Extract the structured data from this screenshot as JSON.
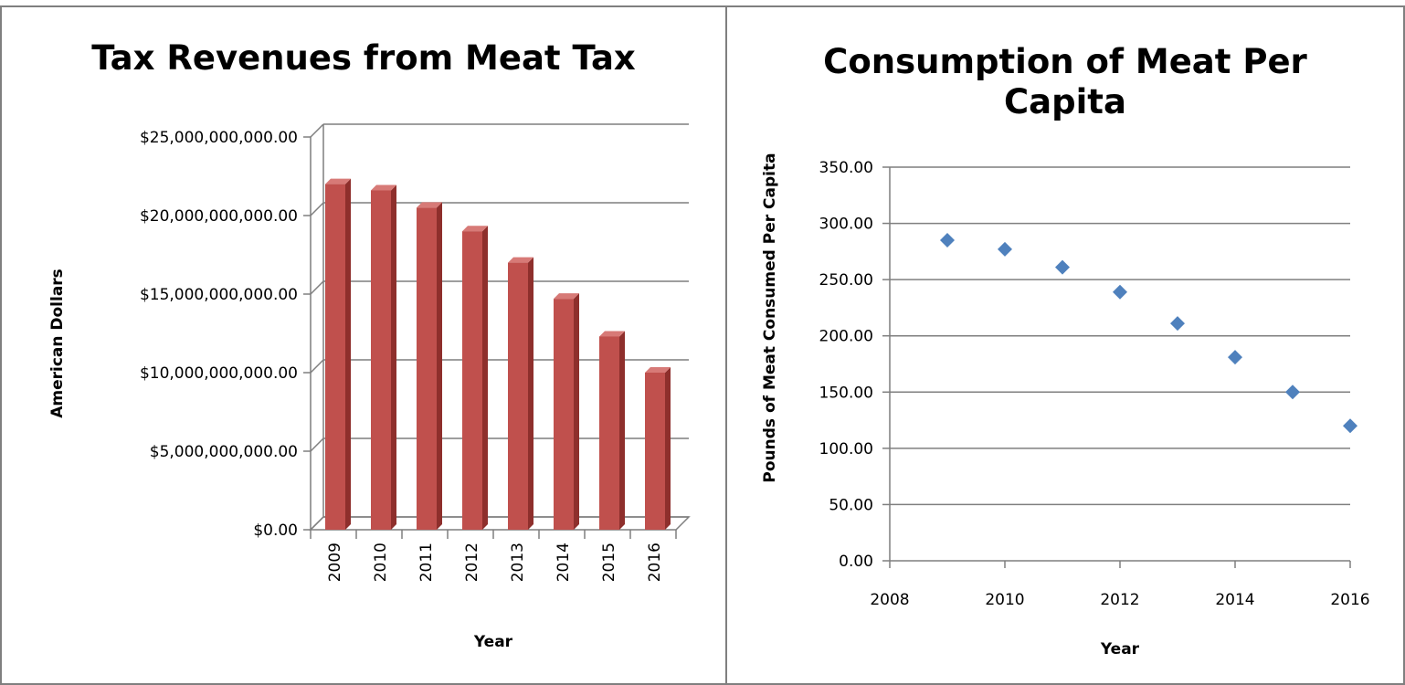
{
  "chart_data": [
    {
      "type": "bar",
      "title": "Tax Revenues from Meat Tax",
      "xlabel": "Year",
      "ylabel": "American Dollars",
      "categories": [
        "2009",
        "2010",
        "2011",
        "2012",
        "2013",
        "2014",
        "2015",
        "2016"
      ],
      "series": [
        {
          "name": "",
          "values": [
            22000000000,
            21600000000,
            20500000000,
            19000000000,
            17000000000,
            14700000000,
            12300000000,
            10000000000
          ]
        }
      ],
      "ylim": [
        0,
        25000000000
      ],
      "y_ticks": [
        "$0.00",
        "$5,000,000,000.00",
        "$10,000,000,000.00",
        "$15,000,000,000.00",
        "$20,000,000,000.00",
        "$25,000,000,000.00"
      ],
      "grid": true,
      "style": "3d-column",
      "color": "#c0504d",
      "legend": "none"
    },
    {
      "type": "scatter",
      "title": "Consumption of Meat Per Capita",
      "xlabel": "Year",
      "ylabel": "Pounds of Meat Consumed Per Capita",
      "x": [
        2009,
        2010,
        2011,
        2012,
        2013,
        2014,
        2015,
        2016
      ],
      "series": [
        {
          "name": "",
          "values": [
            285,
            277,
            261,
            239,
            211,
            181,
            150,
            120
          ]
        }
      ],
      "xlim": [
        2008,
        2016
      ],
      "ylim": [
        0,
        350
      ],
      "x_ticks": [
        "2008",
        "2010",
        "2012",
        "2014",
        "2016"
      ],
      "y_ticks": [
        "0.00",
        "50.00",
        "100.00",
        "150.00",
        "200.00",
        "250.00",
        "300.00",
        "350.00"
      ],
      "grid": true,
      "marker": "diamond",
      "color": "#4f81bd",
      "legend": "none"
    }
  ]
}
